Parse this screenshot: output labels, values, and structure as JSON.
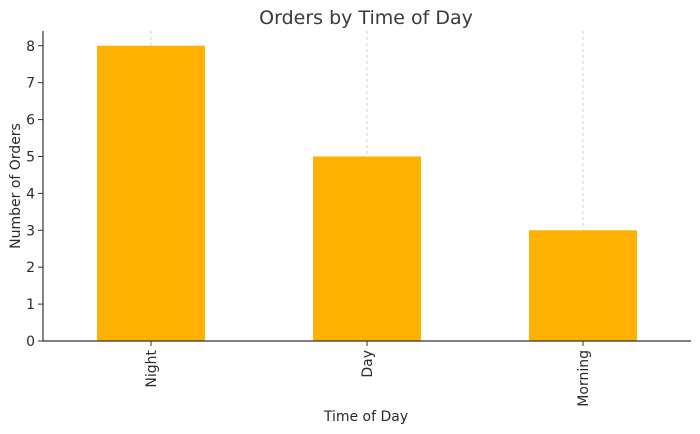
{
  "chart_data": {
    "type": "bar",
    "title": "Orders by Time of Day",
    "xlabel": "Time of Day",
    "ylabel": "Number of Orders",
    "categories": [
      "Night",
      "Day",
      "Morning"
    ],
    "values": [
      8,
      5,
      3
    ],
    "ylim": [
      0,
      8.4
    ],
    "yticks": [
      0,
      1,
      2,
      3,
      4,
      5,
      6,
      7,
      8
    ],
    "bar_color": "#FFB000",
    "grid": "x-axis vertical dashed",
    "x_tick_rotation": "vertical"
  }
}
